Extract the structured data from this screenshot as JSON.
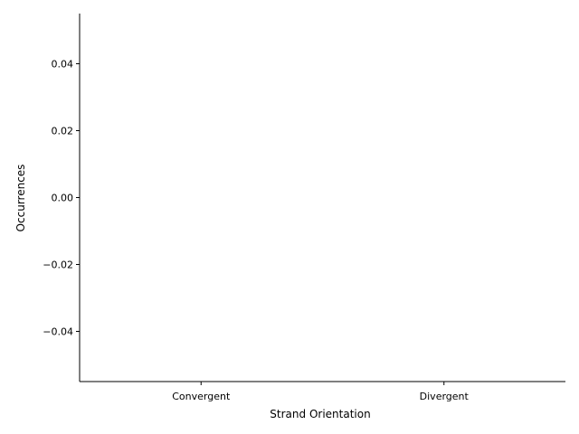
{
  "chart_data": {
    "type": "bar",
    "title": "",
    "xlabel": "Strand Orientation",
    "ylabel": "Occurrences",
    "categories": [
      "Convergent",
      "Divergent"
    ],
    "values": [
      0,
      0
    ],
    "ylim": [
      -0.055,
      0.055
    ],
    "yticks": [
      -0.04,
      -0.02,
      0.0,
      0.02,
      0.04
    ],
    "ytick_labels": [
      "−0.04",
      "−0.02",
      "0.00",
      "0.02",
      "0.04"
    ],
    "grid": false,
    "legend": "none",
    "spines": [
      "left",
      "bottom"
    ]
  }
}
